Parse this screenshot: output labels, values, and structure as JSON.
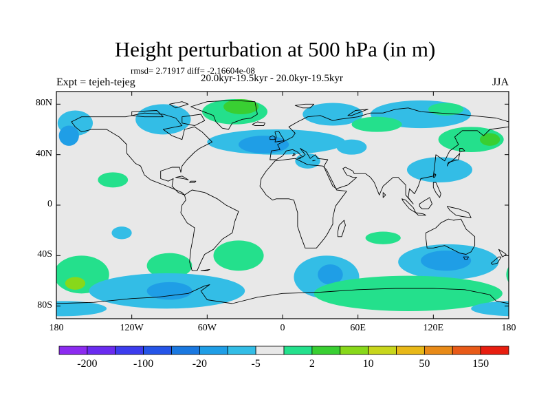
{
  "title": "Height perturbation at 500 hPa (in m)",
  "stats": "rmsd= 2.71917 diff= -2.16604e-08",
  "period": "20.0kyr-19.5kyr - 20.0kyr-19.5kyr",
  "experiment": "Expt = tejeh-tejeg",
  "season": "JJA",
  "map": {
    "projection": "cylindrical-equidistant",
    "lon_range": [
      -180,
      180
    ],
    "lat_range": [
      -90,
      90
    ],
    "lat_ticks": [
      {
        "v": 80,
        "label": "80N"
      },
      {
        "v": 40,
        "label": "40N"
      },
      {
        "v": 0,
        "label": "0"
      },
      {
        "v": -40,
        "label": "40S"
      },
      {
        "v": -80,
        "label": "80S"
      }
    ],
    "lon_ticks": [
      {
        "v": -180,
        "label": "180"
      },
      {
        "v": -120,
        "label": "120W"
      },
      {
        "v": -60,
        "label": "60W"
      },
      {
        "v": 0,
        "label": "0"
      },
      {
        "v": 60,
        "label": "60E"
      },
      {
        "v": 120,
        "label": "120E"
      },
      {
        "v": 180,
        "label": "180"
      }
    ],
    "background_color": "#e8e8e8"
  },
  "colorbar": {
    "colors": [
      "#8c2bf0",
      "#6a2bf0",
      "#3c3cee",
      "#2555e8",
      "#1a78e0",
      "#1f9ee6",
      "#33bde6",
      "#e8e8e8",
      "#24e08c",
      "#39cf32",
      "#88d81a",
      "#c8d61c",
      "#e8b818",
      "#e88a18",
      "#e85a18",
      "#e81e10"
    ],
    "tick_labels": [
      "-200",
      "-100",
      "-20",
      "-5",
      "2",
      "10",
      "50",
      "150"
    ]
  },
  "fields": [
    {
      "lon": -145,
      "lat": 45,
      "rx": 14,
      "ry": 10,
      "level": 7
    },
    {
      "lon": -165,
      "lat": 65,
      "rx": 14,
      "ry": 10,
      "level": 6
    },
    {
      "lon": -170,
      "lat": 55,
      "rx": 8,
      "ry": 8,
      "level": 5
    },
    {
      "lon": -95,
      "lat": 68,
      "rx": 22,
      "ry": 12,
      "level": 6
    },
    {
      "lon": -5,
      "lat": 50,
      "rx": 55,
      "ry": 10,
      "level": 6
    },
    {
      "lon": -15,
      "lat": 48,
      "rx": 20,
      "ry": 7,
      "level": 5
    },
    {
      "lon": -38,
      "lat": 74,
      "rx": 26,
      "ry": 10,
      "level": 8
    },
    {
      "lon": -33,
      "lat": 78,
      "rx": 14,
      "ry": 6,
      "level": 9
    },
    {
      "lon": 40,
      "lat": 72,
      "rx": 24,
      "ry": 9,
      "level": 6
    },
    {
      "lon": 110,
      "lat": 72,
      "rx": 40,
      "ry": 11,
      "level": 6
    },
    {
      "lon": 75,
      "lat": 64,
      "rx": 20,
      "ry": 6,
      "level": 8
    },
    {
      "lon": 130,
      "lat": 76,
      "rx": 14,
      "ry": 5,
      "level": 8
    },
    {
      "lon": 20,
      "lat": 35,
      "rx": 10,
      "ry": 6,
      "level": 6
    },
    {
      "lon": 150,
      "lat": 52,
      "rx": 26,
      "ry": 10,
      "level": 8
    },
    {
      "lon": 165,
      "lat": 52,
      "rx": 8,
      "ry": 5,
      "level": 9
    },
    {
      "lon": 125,
      "lat": 28,
      "rx": 26,
      "ry": 10,
      "level": 6
    },
    {
      "lon": 55,
      "lat": 46,
      "rx": 12,
      "ry": 6,
      "level": 6
    },
    {
      "lon": -135,
      "lat": 20,
      "rx": 12,
      "ry": 6,
      "level": 8
    },
    {
      "lon": -128,
      "lat": -22,
      "rx": 8,
      "ry": 5,
      "level": 6
    },
    {
      "lon": -160,
      "lat": -55,
      "rx": 22,
      "ry": 15,
      "level": 8
    },
    {
      "lon": -165,
      "lat": -62,
      "rx": 8,
      "ry": 5,
      "level": 10
    },
    {
      "lon": -90,
      "lat": -48,
      "rx": 18,
      "ry": 10,
      "level": 8
    },
    {
      "lon": -35,
      "lat": -40,
      "rx": 20,
      "ry": 12,
      "level": 8
    },
    {
      "lon": -92,
      "lat": -68,
      "rx": 62,
      "ry": 14,
      "level": 6
    },
    {
      "lon": -90,
      "lat": -68,
      "rx": 18,
      "ry": 7,
      "level": 5
    },
    {
      "lon": 35,
      "lat": -57,
      "rx": 26,
      "ry": 17,
      "level": 6
    },
    {
      "lon": 38,
      "lat": -55,
      "rx": 10,
      "ry": 8,
      "level": 5
    },
    {
      "lon": 132,
      "lat": -45,
      "rx": 40,
      "ry": 14,
      "level": 6
    },
    {
      "lon": 130,
      "lat": -44,
      "rx": 20,
      "ry": 8,
      "level": 5
    },
    {
      "lon": 100,
      "lat": -70,
      "rx": 75,
      "ry": 14,
      "level": 8
    },
    {
      "lon": -175,
      "lat": -82,
      "rx": 35,
      "ry": 6,
      "level": 6
    },
    {
      "lon": 80,
      "lat": -26,
      "rx": 14,
      "ry": 5,
      "level": 8
    }
  ],
  "land": [
    [
      [
        -168,
        66
      ],
      [
        -160,
        70
      ],
      [
        -140,
        70
      ],
      [
        -125,
        70
      ],
      [
        -110,
        73
      ],
      [
        -95,
        72
      ],
      [
        -85,
        69
      ],
      [
        -80,
        63
      ],
      [
        -95,
        60
      ],
      [
        -88,
        55
      ],
      [
        -80,
        52
      ],
      [
        -78,
        60
      ],
      [
        -70,
        62
      ],
      [
        -64,
        58
      ],
      [
        -60,
        54
      ],
      [
        -56,
        50
      ],
      [
        -66,
        45
      ],
      [
        -70,
        42
      ],
      [
        -76,
        36
      ],
      [
        -80,
        31
      ],
      [
        -81,
        26
      ],
      [
        -82,
        30
      ],
      [
        -88,
        30
      ],
      [
        -97,
        27
      ],
      [
        -97,
        21
      ],
      [
        -91,
        19
      ],
      [
        -87,
        21
      ],
      [
        -88,
        15
      ],
      [
        -83,
        10
      ],
      [
        -78,
        8
      ],
      [
        -80,
        10
      ],
      [
        -87,
        13
      ],
      [
        -92,
        15
      ],
      [
        -105,
        20
      ],
      [
        -110,
        24
      ],
      [
        -113,
        31
      ],
      [
        -117,
        33
      ],
      [
        -124,
        41
      ],
      [
        -124,
        48
      ],
      [
        -130,
        54
      ],
      [
        -140,
        60
      ],
      [
        -152,
        60
      ],
      [
        -160,
        58
      ],
      [
        -165,
        62
      ]
    ],
    [
      [
        -78,
        8
      ],
      [
        -72,
        12
      ],
      [
        -62,
        10
      ],
      [
        -52,
        5
      ],
      [
        -45,
        0
      ],
      [
        -35,
        -5
      ],
      [
        -38,
        -13
      ],
      [
        -40,
        -22
      ],
      [
        -48,
        -27
      ],
      [
        -55,
        -35
      ],
      [
        -62,
        -39
      ],
      [
        -65,
        -45
      ],
      [
        -68,
        -52
      ],
      [
        -72,
        -52
      ],
      [
        -74,
        -45
      ],
      [
        -73,
        -35
      ],
      [
        -71,
        -25
      ],
      [
        -70,
        -18
      ],
      [
        -76,
        -14
      ],
      [
        -81,
        -6
      ],
      [
        -80,
        0
      ],
      [
        -77,
        4
      ]
    ],
    [
      [
        -18,
        15
      ],
      [
        -17,
        21
      ],
      [
        -13,
        27
      ],
      [
        -6,
        35
      ],
      [
        10,
        37
      ],
      [
        20,
        32
      ],
      [
        32,
        31
      ],
      [
        35,
        28
      ],
      [
        43,
        12
      ],
      [
        51,
        11
      ],
      [
        42,
        -1
      ],
      [
        40,
        -10
      ],
      [
        40,
        -15
      ],
      [
        35,
        -24
      ],
      [
        32,
        -28
      ],
      [
        27,
        -34
      ],
      [
        18,
        -34
      ],
      [
        15,
        -26
      ],
      [
        12,
        -17
      ],
      [
        12,
        -6
      ],
      [
        9,
        4
      ],
      [
        5,
        5
      ],
      [
        -5,
        5
      ],
      [
        -8,
        4
      ],
      [
        -13,
        8
      ]
    ],
    [
      [
        -10,
        36
      ],
      [
        -9,
        43
      ],
      [
        -2,
        44
      ],
      [
        -4,
        48
      ],
      [
        2,
        51
      ],
      [
        8,
        54
      ],
      [
        10,
        57
      ],
      [
        5,
        62
      ],
      [
        12,
        66
      ],
      [
        20,
        70
      ],
      [
        30,
        71
      ],
      [
        40,
        67
      ],
      [
        45,
        68
      ],
      [
        60,
        70
      ],
      [
        70,
        73
      ],
      [
        80,
        73
      ],
      [
        90,
        76
      ],
      [
        100,
        77
      ],
      [
        110,
        74
      ],
      [
        125,
        73
      ],
      [
        140,
        72
      ],
      [
        160,
        70
      ],
      [
        170,
        69
      ],
      [
        180,
        66
      ],
      [
        180,
        62
      ],
      [
        165,
        60
      ],
      [
        160,
        55
      ],
      [
        155,
        59
      ],
      [
        143,
        59
      ],
      [
        137,
        54
      ],
      [
        140,
        48
      ],
      [
        133,
        43
      ],
      [
        129,
        35
      ],
      [
        122,
        40
      ],
      [
        121,
        31
      ],
      [
        120,
        23
      ],
      [
        110,
        21
      ],
      [
        108,
        15
      ],
      [
        105,
        9
      ],
      [
        101,
        13
      ],
      [
        100,
        6
      ],
      [
        104,
        1
      ],
      [
        98,
        8
      ],
      [
        98,
        16
      ],
      [
        92,
        22
      ],
      [
        88,
        22
      ],
      [
        80,
        15
      ],
      [
        77,
        8
      ],
      [
        73,
        18
      ],
      [
        70,
        22
      ],
      [
        66,
        25
      ],
      [
        57,
        25
      ],
      [
        56,
        27
      ],
      [
        50,
        30
      ],
      [
        48,
        29
      ],
      [
        51,
        24
      ],
      [
        56,
        22
      ],
      [
        59,
        22
      ],
      [
        52,
        16
      ],
      [
        43,
        13
      ],
      [
        40,
        15
      ],
      [
        34,
        28
      ],
      [
        33,
        31
      ],
      [
        36,
        36
      ],
      [
        28,
        37
      ],
      [
        26,
        40
      ],
      [
        22,
        37
      ],
      [
        19,
        42
      ],
      [
        14,
        45
      ],
      [
        18,
        40
      ],
      [
        16,
        38
      ],
      [
        12,
        42
      ],
      [
        8,
        44
      ],
      [
        3,
        43
      ],
      [
        0,
        39
      ],
      [
        -5,
        36
      ]
    ],
    [
      [
        114,
        -22
      ],
      [
        114,
        -26
      ],
      [
        115,
        -34
      ],
      [
        120,
        -34
      ],
      [
        129,
        -32
      ],
      [
        135,
        -35
      ],
      [
        141,
        -38
      ],
      [
        146,
        -39
      ],
      [
        150,
        -37
      ],
      [
        153,
        -32
      ],
      [
        153,
        -25
      ],
      [
        146,
        -19
      ],
      [
        142,
        -11
      ],
      [
        136,
        -12
      ],
      [
        132,
        -11
      ],
      [
        126,
        -14
      ],
      [
        122,
        -18
      ]
    ],
    [
      [
        -73,
        78
      ],
      [
        -60,
        82
      ],
      [
        -40,
        83
      ],
      [
        -22,
        82
      ],
      [
        -20,
        72
      ],
      [
        -25,
        69
      ],
      [
        -32,
        68
      ],
      [
        -40,
        65
      ],
      [
        -43,
        60
      ],
      [
        -48,
        61
      ],
      [
        -53,
        66
      ],
      [
        -55,
        71
      ],
      [
        -68,
        76
      ]
    ],
    [
      [
        -180,
        -78
      ],
      [
        -150,
        -77
      ],
      [
        -120,
        -74
      ],
      [
        -100,
        -73
      ],
      [
        -75,
        -70
      ],
      [
        -62,
        -64
      ],
      [
        -58,
        -63
      ],
      [
        -65,
        -68
      ],
      [
        -60,
        -75
      ],
      [
        -40,
        -78
      ],
      [
        -20,
        -73
      ],
      [
        0,
        -70
      ],
      [
        30,
        -69
      ],
      [
        60,
        -67
      ],
      [
        90,
        -66
      ],
      [
        120,
        -66
      ],
      [
        145,
        -67
      ],
      [
        165,
        -71
      ],
      [
        170,
        -76
      ],
      [
        180,
        -78
      ],
      [
        180,
        -90
      ],
      [
        -180,
        -90
      ]
    ],
    [
      [
        -6,
        50
      ],
      [
        -5,
        54
      ],
      [
        -6,
        58
      ],
      [
        -3,
        58.5
      ],
      [
        -1,
        55
      ],
      [
        1,
        52
      ],
      [
        1,
        51
      ]
    ],
    [
      [
        -10,
        52
      ],
      [
        -10,
        54
      ],
      [
        -8,
        55
      ],
      [
        -6,
        54
      ],
      [
        -6,
        52
      ]
    ],
    [
      [
        131,
        31
      ],
      [
        132,
        34
      ],
      [
        136,
        35
      ],
      [
        140,
        36
      ],
      [
        141,
        41
      ],
      [
        140,
        40
      ],
      [
        136,
        36
      ],
      [
        132,
        33
      ]
    ],
    [
      [
        141,
        42
      ],
      [
        145,
        43
      ],
      [
        143,
        45
      ],
      [
        141,
        45
      ]
    ],
    [
      [
        44,
        -25
      ],
      [
        47,
        -25
      ],
      [
        50,
        -16
      ],
      [
        49,
        -12
      ],
      [
        45,
        -16
      ],
      [
        44,
        -21
      ]
    ],
    [
      [
        95,
        5
      ],
      [
        98,
        4
      ],
      [
        104,
        -2
      ],
      [
        106,
        -6
      ],
      [
        101,
        -3
      ],
      [
        96,
        3
      ]
    ],
    [
      [
        106,
        -6
      ],
      [
        112,
        -7
      ],
      [
        114,
        -8
      ],
      [
        108,
        -8
      ]
    ],
    [
      [
        109,
        1
      ],
      [
        112,
        3
      ],
      [
        117,
        6
      ],
      [
        119,
        1
      ],
      [
        116,
        -3
      ],
      [
        111,
        -3
      ],
      [
        109,
        -1
      ]
    ],
    [
      [
        131,
        -1
      ],
      [
        140,
        -3
      ],
      [
        148,
        -6
      ],
      [
        150,
        -10
      ],
      [
        143,
        -9
      ],
      [
        138,
        -8
      ],
      [
        133,
        -4
      ]
    ],
    [
      [
        172,
        -35
      ],
      [
        175,
        -37
      ],
      [
        178,
        -39
      ],
      [
        175,
        -41
      ],
      [
        174,
        -39
      ]
    ],
    [
      [
        166,
        -46
      ],
      [
        172,
        -41
      ],
      [
        174,
        -41
      ],
      [
        171,
        -46
      ],
      [
        167,
        -47
      ]
    ],
    [
      [
        -24,
        64
      ],
      [
        -20,
        66
      ],
      [
        -14,
        65
      ],
      [
        -15,
        63
      ],
      [
        -22,
        63
      ]
    ],
    [
      [
        -85,
        77
      ],
      [
        -75,
        80
      ],
      [
        -80,
        82
      ],
      [
        -90,
        80
      ]
    ],
    [
      [
        -120,
        74
      ],
      [
        -100,
        75
      ],
      [
        -95,
        70
      ],
      [
        -110,
        70
      ],
      [
        -120,
        71
      ]
    ],
    [
      [
        -80,
        70
      ],
      [
        -65,
        72
      ],
      [
        -62,
        67
      ],
      [
        -70,
        63
      ],
      [
        -80,
        65
      ]
    ],
    [
      [
        10,
        79
      ],
      [
        18,
        80
      ],
      [
        25,
        80
      ],
      [
        22,
        77
      ],
      [
        16,
        77
      ]
    ],
    [
      [
        52,
        71
      ],
      [
        58,
        75
      ],
      [
        68,
        76
      ],
      [
        60,
        73
      ],
      [
        55,
        71
      ]
    ],
    [
      [
        144,
        -41
      ],
      [
        148,
        -41
      ],
      [
        147,
        -43
      ],
      [
        145,
        -43
      ]
    ],
    [
      [
        80,
        10
      ],
      [
        82,
        8
      ],
      [
        80,
        6
      ]
    ],
    [
      [
        -85,
        22
      ],
      [
        -80,
        23
      ],
      [
        -75,
        20
      ],
      [
        -79,
        21
      ]
    ],
    [
      [
        -73,
        19
      ],
      [
        -69,
        19
      ],
      [
        -70,
        18
      ],
      [
        -74,
        18
      ]
    ],
    [
      [
        120,
        18
      ],
      [
        122,
        18
      ],
      [
        126,
        9
      ],
      [
        125,
        6
      ],
      [
        122,
        10
      ],
      [
        120,
        14
      ]
    ],
    [
      [
        -65,
        -52
      ],
      [
        -58,
        -51
      ],
      [
        -60,
        -52
      ]
    ],
    [
      [
        120,
        22
      ],
      [
        121,
        25
      ],
      [
        122,
        24
      ],
      [
        121,
        22
      ]
    ],
    [
      [
        8,
        39
      ],
      [
        9,
        41
      ],
      [
        10,
        40
      ]
    ],
    [
      [
        12,
        37
      ],
      [
        15,
        38
      ],
      [
        14,
        37
      ]
    ],
    [
      [
        24,
        35
      ],
      [
        26,
        35.5
      ],
      [
        24,
        35.3
      ]
    ]
  ]
}
